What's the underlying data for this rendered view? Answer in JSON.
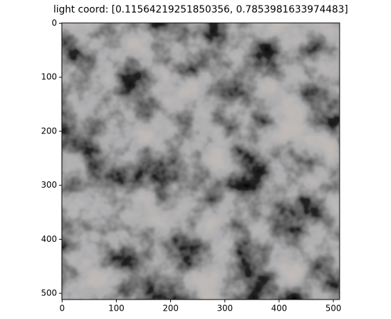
{
  "chart_data": {
    "type": "image",
    "title": "light coord: [0.11564219251850356, 0.7853981633974483]",
    "xlim": [
      -0.5,
      511.5
    ],
    "ylim": [
      511.5,
      -0.5
    ],
    "xticks": [
      0,
      100,
      200,
      300,
      400,
      500
    ],
    "yticks": [
      0,
      100,
      200,
      300,
      400,
      500
    ]
  }
}
